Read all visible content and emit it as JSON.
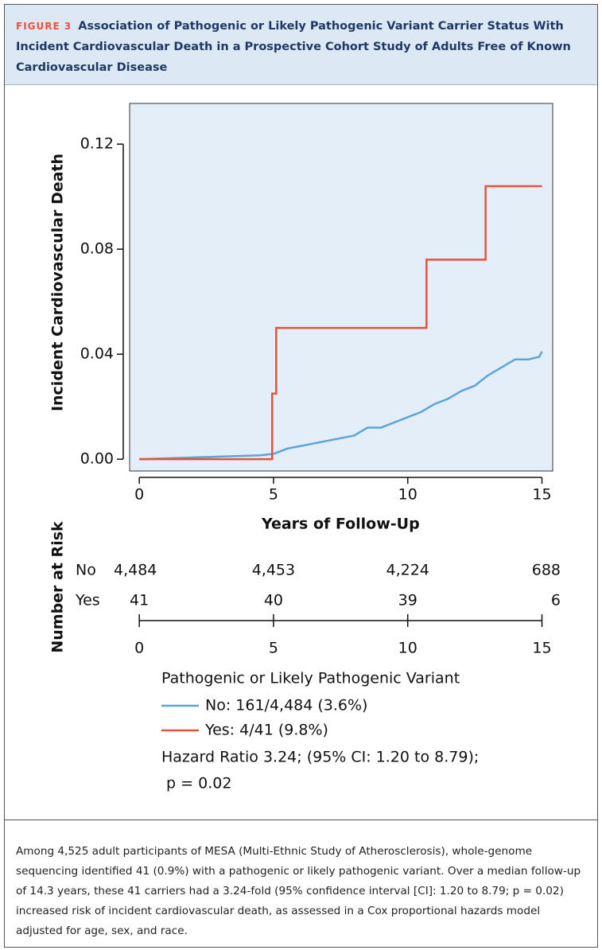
{
  "header": {
    "label": "FIGURE 3",
    "title": "Association of Pathogenic or Likely Pathogenic Variant Carrier Status With Incident Cardiovascular Death in a Prospective Cohort Study of Adults Free of Known Cardiovascular Disease"
  },
  "chart_data": {
    "type": "line",
    "xlabel": "Years of Follow-Up",
    "ylabel": "Incident Cardiovascular Death",
    "xlim": [
      -0.36,
      15.4
    ],
    "ylim": [
      -0.0045,
      0.1355
    ],
    "xticks": [
      0,
      5,
      10,
      15
    ],
    "yticks": [
      {
        "value": 0,
        "label": "0.00"
      },
      0.04,
      0.08,
      0.12
    ],
    "background": "#e4eef8",
    "legend_title": "Pathogenic or Likely Pathogenic Variant",
    "series": [
      {
        "name": "No: 161/4,484 (3.6%)",
        "color": "#5aa5d8",
        "x": [
          0,
          1.5,
          3,
          4.5,
          5,
          5.5,
          6,
          7,
          8,
          8.5,
          9,
          10,
          10.5,
          11,
          11.5,
          12,
          12.5,
          13,
          13.5,
          14,
          14.5,
          14.9,
          15
        ],
        "values": [
          0,
          0.0005,
          0.001,
          0.0015,
          0.002,
          0.004,
          0.005,
          0.007,
          0.009,
          0.012,
          0.012,
          0.016,
          0.018,
          0.021,
          0.023,
          0.026,
          0.028,
          0.032,
          0.035,
          0.038,
          0.038,
          0.039,
          0.041
        ]
      },
      {
        "name": "Yes: 4/41 (9.8%)",
        "color": "#e8523c",
        "x": [
          0,
          4.95,
          4.95,
          5.1,
          5.1,
          10.7,
          10.7,
          12.9,
          12.9,
          15
        ],
        "values": [
          0,
          0,
          0.025,
          0.025,
          0.05,
          0.05,
          0.076,
          0.076,
          0.104,
          0.104
        ]
      }
    ],
    "annotations": [
      "Hazard Ratio 3.24; (95% CI: 1.20 to 8.79);",
      " p = 0.02"
    ]
  },
  "risk_table": {
    "title": "Number at Risk",
    "ticks": [
      0,
      5,
      10,
      15
    ],
    "rows": [
      {
        "name": "No",
        "counts": [
          "4,484",
          "4,453",
          "4,224",
          "688"
        ]
      },
      {
        "name": "Yes",
        "counts": [
          "41",
          "40",
          "39",
          "6"
        ]
      }
    ]
  },
  "caption": "Among 4,525 adult participants of MESA (Multi-Ethnic Study of Atherosclerosis), whole-genome sequencing identified 41 (0.9%) with a pathogenic or likely pathogenic variant. Over a median follow-up of 14.3 years, these 41 carriers had a 3.24-fold (95% confidence interval [CI]: 1.20 to 8.79; p = 0.02) increased risk of incident cardiovascular death, as assessed in a Cox proportional hazards model adjusted for age, sex, and race."
}
